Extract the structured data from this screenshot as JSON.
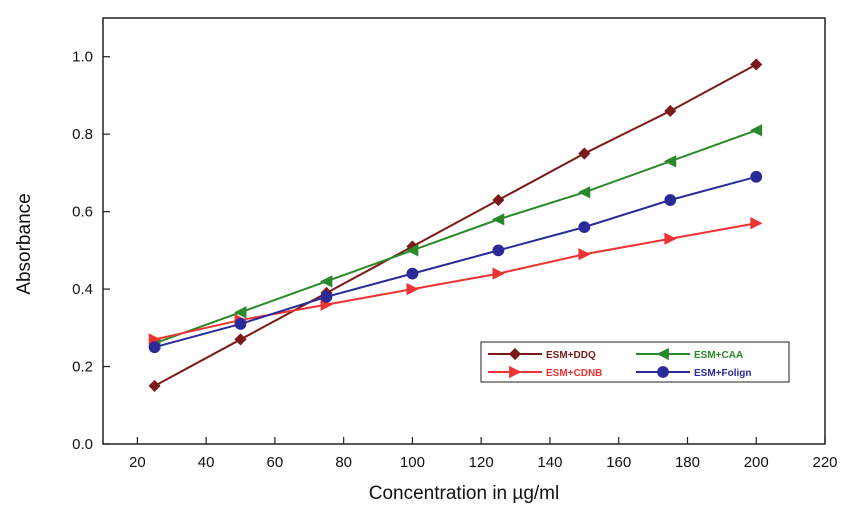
{
  "chart_data": {
    "type": "line",
    "title": "",
    "xlabel": "Concentration in µg/ml",
    "ylabel": "Absorbance",
    "xlim": [
      10,
      220
    ],
    "ylim": [
      0.0,
      1.1
    ],
    "xticks": [
      20,
      40,
      60,
      80,
      100,
      120,
      140,
      160,
      180,
      200,
      220
    ],
    "xtick_labels": [
      "20",
      "40",
      "60",
      "80",
      "100",
      "120",
      "140",
      "160",
      "180",
      "200",
      "220"
    ],
    "yticks": [
      0.0,
      0.2,
      0.4,
      0.6,
      0.8,
      1.0
    ],
    "ytick_labels": [
      "0.0",
      "0.2",
      "0.4",
      "0.6",
      "0.8",
      "1.0"
    ],
    "grid": false,
    "legend_position": "lower-right",
    "x": [
      25,
      50,
      75,
      100,
      125,
      150,
      175,
      200
    ],
    "series": [
      {
        "name": "ESM+DDQ",
        "color": "#7a1a1a",
        "marker": "diamond",
        "values": [
          0.15,
          0.27,
          0.39,
          0.51,
          0.63,
          0.75,
          0.86,
          0.98
        ]
      },
      {
        "name": "ESM+CAA",
        "color": "#2a8a2a",
        "marker": "triangle-left",
        "values": [
          0.26,
          0.34,
          0.42,
          0.5,
          0.58,
          0.65,
          0.73,
          0.81
        ]
      },
      {
        "name": "ESM+CDNB",
        "color": "#ee3333",
        "marker": "triangle-right",
        "values": [
          0.27,
          0.32,
          0.36,
          0.4,
          0.44,
          0.49,
          0.53,
          0.57
        ]
      },
      {
        "name": "ESM+Folign",
        "color": "#2a2a99",
        "marker": "circle",
        "values": [
          0.25,
          0.31,
          0.38,
          0.44,
          0.5,
          0.56,
          0.63,
          0.69
        ]
      }
    ]
  }
}
